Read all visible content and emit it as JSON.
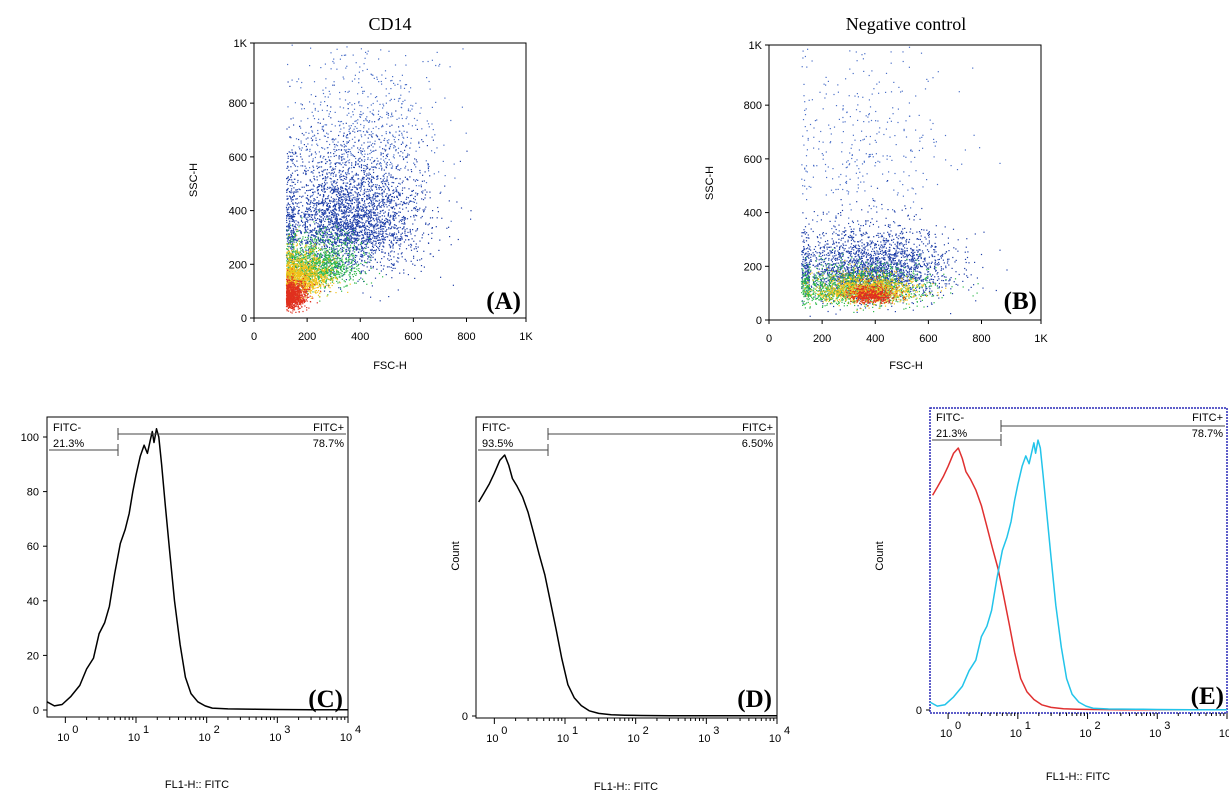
{
  "chart_data": [
    {
      "panel": "A",
      "type": "scatter",
      "title": "CD14",
      "xlabel": "FSC-H",
      "ylabel": "SSC-H",
      "xlim": [
        0,
        1024
      ],
      "ylim": [
        0,
        1024
      ],
      "x_ticks": [
        0,
        200,
        400,
        600,
        800,
        1024
      ],
      "x_tick_labels": [
        "0",
        "200",
        "400",
        "600",
        "800",
        "1K"
      ],
      "y_ticks": [
        0,
        200,
        400,
        600,
        800,
        1024
      ],
      "y_tick_labels": [
        "0",
        "200",
        "400",
        "600",
        "800",
        "1K"
      ],
      "density_clusters": [
        {
          "x": 140,
          "y": 60,
          "sx": 30,
          "sy": 40,
          "n": 900,
          "color": "#e0301e"
        },
        {
          "x": 170,
          "y": 120,
          "sx": 55,
          "sy": 60,
          "n": 1200,
          "color": "#f2c21b"
        },
        {
          "x": 230,
          "y": 160,
          "sx": 80,
          "sy": 70,
          "n": 1300,
          "color": "#2eb84a"
        },
        {
          "x": 350,
          "y": 280,
          "sx": 140,
          "sy": 170,
          "n": 3200,
          "color": "#1f3fa8"
        },
        {
          "x": 420,
          "y": 560,
          "sx": 140,
          "sy": 230,
          "n": 700,
          "color": "#4a6fc8"
        }
      ],
      "panel_label": "(A)"
    },
    {
      "panel": "B",
      "type": "scatter",
      "title": "Negative control",
      "xlabel": "FSC-H",
      "ylabel": "SSC-H",
      "xlim": [
        0,
        1024
      ],
      "ylim": [
        0,
        1024
      ],
      "x_ticks": [
        0,
        200,
        400,
        600,
        800,
        1024
      ],
      "x_tick_labels": [
        "0",
        "200",
        "400",
        "600",
        "800",
        "1K"
      ],
      "y_ticks": [
        0,
        200,
        400,
        600,
        800,
        1024
      ],
      "y_tick_labels": [
        "0",
        "200",
        "400",
        "600",
        "800",
        "1K"
      ],
      "density_clusters": [
        {
          "x": 380,
          "y": 80,
          "sx": 40,
          "sy": 25,
          "n": 500,
          "color": "#e0301e"
        },
        {
          "x": 360,
          "y": 90,
          "sx": 90,
          "sy": 40,
          "n": 1100,
          "color": "#f2c21b"
        },
        {
          "x": 320,
          "y": 90,
          "sx": 130,
          "sy": 55,
          "n": 1300,
          "color": "#2eb84a"
        },
        {
          "x": 380,
          "y": 140,
          "sx": 150,
          "sy": 100,
          "n": 2400,
          "color": "#1f3fa8"
        },
        {
          "x": 360,
          "y": 480,
          "sx": 180,
          "sy": 280,
          "n": 350,
          "color": "#4a6fc8"
        }
      ],
      "panel_label": "(B)"
    },
    {
      "panel": "C",
      "type": "line",
      "xlabel": "FL1-H:: FITC",
      "ylabel": "",
      "xscale": "log",
      "xlim": [
        0.55,
        10000
      ],
      "ylim": [
        0,
        108
      ],
      "y_ticks": [
        0,
        20,
        40,
        60,
        80,
        100
      ],
      "y_tick_labels": [
        "0",
        "20",
        "40",
        "60",
        "80",
        "100"
      ],
      "series": [
        {
          "color": "#000000",
          "x": [
            0.55,
            0.7,
            0.9,
            1.2,
            1.6,
            2.0,
            2.5,
            3.0,
            3.6,
            4.2,
            5.0,
            6.0,
            7.0,
            8.0,
            9.0,
            10.0,
            11.5,
            13.0,
            14.5,
            16.0,
            17.0,
            18.0,
            19.5,
            21.0,
            23.0,
            26.0,
            30.0,
            35.0,
            42.0,
            50.0,
            60.0,
            75.0,
            95.0,
            120.0,
            200.0,
            500.0,
            1000.0,
            3000.0,
            10000.0
          ],
          "y": [
            3,
            1.5,
            2,
            5,
            9,
            15,
            19,
            28,
            32,
            38,
            50,
            61,
            66,
            72,
            80,
            86,
            93,
            97,
            94,
            99,
            102,
            98,
            103,
            100,
            90,
            75,
            58,
            40,
            24,
            12,
            6,
            3,
            1.5,
            0.7,
            0.4,
            0.3,
            0.2,
            0.1,
            0.1
          ]
        }
      ],
      "gates": [
        {
          "label": "FITC-",
          "percent": "21.3%"
        },
        {
          "label": "FITC+",
          "percent": "78.7%"
        }
      ],
      "panel_label": "(C)"
    },
    {
      "panel": "D",
      "type": "line",
      "xlabel": "FL1-H:: FITC",
      "ylabel": "Count",
      "xscale": "log",
      "xlim": [
        0.55,
        10000
      ],
      "ylim": [
        0,
        108
      ],
      "y_ticks": [
        0
      ],
      "y_tick_labels": [
        "0"
      ],
      "series": [
        {
          "color": "#000000",
          "x": [
            0.6,
            0.7,
            0.85,
            1.0,
            1.2,
            1.4,
            1.6,
            1.8,
            2.1,
            2.5,
            3.0,
            3.6,
            4.3,
            5.2,
            6.2,
            7.5,
            9.0,
            11.0,
            13.5,
            17.0,
            22.0,
            30.0,
            45.0,
            70.0,
            120.0,
            300.0,
            1000.0,
            10000.0
          ],
          "y": [
            82,
            85,
            89,
            93,
            98,
            100,
            96,
            91,
            88,
            84,
            78,
            70,
            62,
            54,
            44,
            33,
            22,
            12,
            7,
            4,
            2,
            1,
            0.5,
            0.3,
            0.2,
            0.1,
            0.1,
            0.1
          ]
        }
      ],
      "gates": [
        {
          "label": "FITC-",
          "percent": "93.5%"
        },
        {
          "label": "FITC+",
          "percent": "6.50%"
        }
      ],
      "panel_label": "(D)"
    },
    {
      "panel": "E",
      "type": "line",
      "xlabel": "FL1-H:: FITC",
      "ylabel": "Count",
      "xscale": "log",
      "xlim": [
        0.55,
        10000
      ],
      "ylim": [
        0,
        108
      ],
      "y_ticks": [
        0
      ],
      "y_tick_labels": [
        "0"
      ],
      "series": [
        {
          "color": "#e03030",
          "x": [
            0.6,
            0.7,
            0.85,
            1.0,
            1.2,
            1.4,
            1.6,
            1.8,
            2.1,
            2.5,
            3.0,
            3.6,
            4.3,
            5.2,
            6.2,
            7.5,
            9.0,
            11.0,
            13.5,
            17.0,
            22.0,
            30.0,
            45.0,
            70.0,
            120.0,
            300.0,
            1000.0,
            10000.0
          ],
          "y": [
            82,
            85,
            89,
            93,
            98,
            100,
            96,
            91,
            88,
            84,
            78,
            70,
            62,
            54,
            44,
            33,
            22,
            12,
            7,
            4,
            2,
            1,
            0.5,
            0.3,
            0.2,
            0.1,
            0.1,
            0.1
          ]
        },
        {
          "color": "#22c4ea",
          "x": [
            0.55,
            0.7,
            0.9,
            1.2,
            1.6,
            2.0,
            2.5,
            3.0,
            3.6,
            4.2,
            5.0,
            6.0,
            7.0,
            8.0,
            9.0,
            10.0,
            11.5,
            13.0,
            14.5,
            16.0,
            17.0,
            18.0,
            19.5,
            21.0,
            23.0,
            26.0,
            30.0,
            35.0,
            42.0,
            50.0,
            60.0,
            75.0,
            95.0,
            120.0,
            200.0,
            500.0,
            1000.0,
            3000.0,
            10000.0
          ],
          "y": [
            3,
            1.5,
            2,
            5,
            9,
            15,
            19,
            28,
            32,
            38,
            50,
            61,
            66,
            72,
            80,
            86,
            93,
            97,
            94,
            99,
            102,
            98,
            103,
            100,
            90,
            75,
            58,
            40,
            24,
            12,
            6,
            3,
            1.5,
            0.7,
            0.4,
            0.3,
            0.2,
            0.1,
            0.1
          ]
        }
      ],
      "gates": [
        {
          "label": "FITC-",
          "percent": "21.3%"
        },
        {
          "label": "FITC+",
          "percent": "78.7%"
        }
      ],
      "panel_label": "(E)"
    }
  ]
}
